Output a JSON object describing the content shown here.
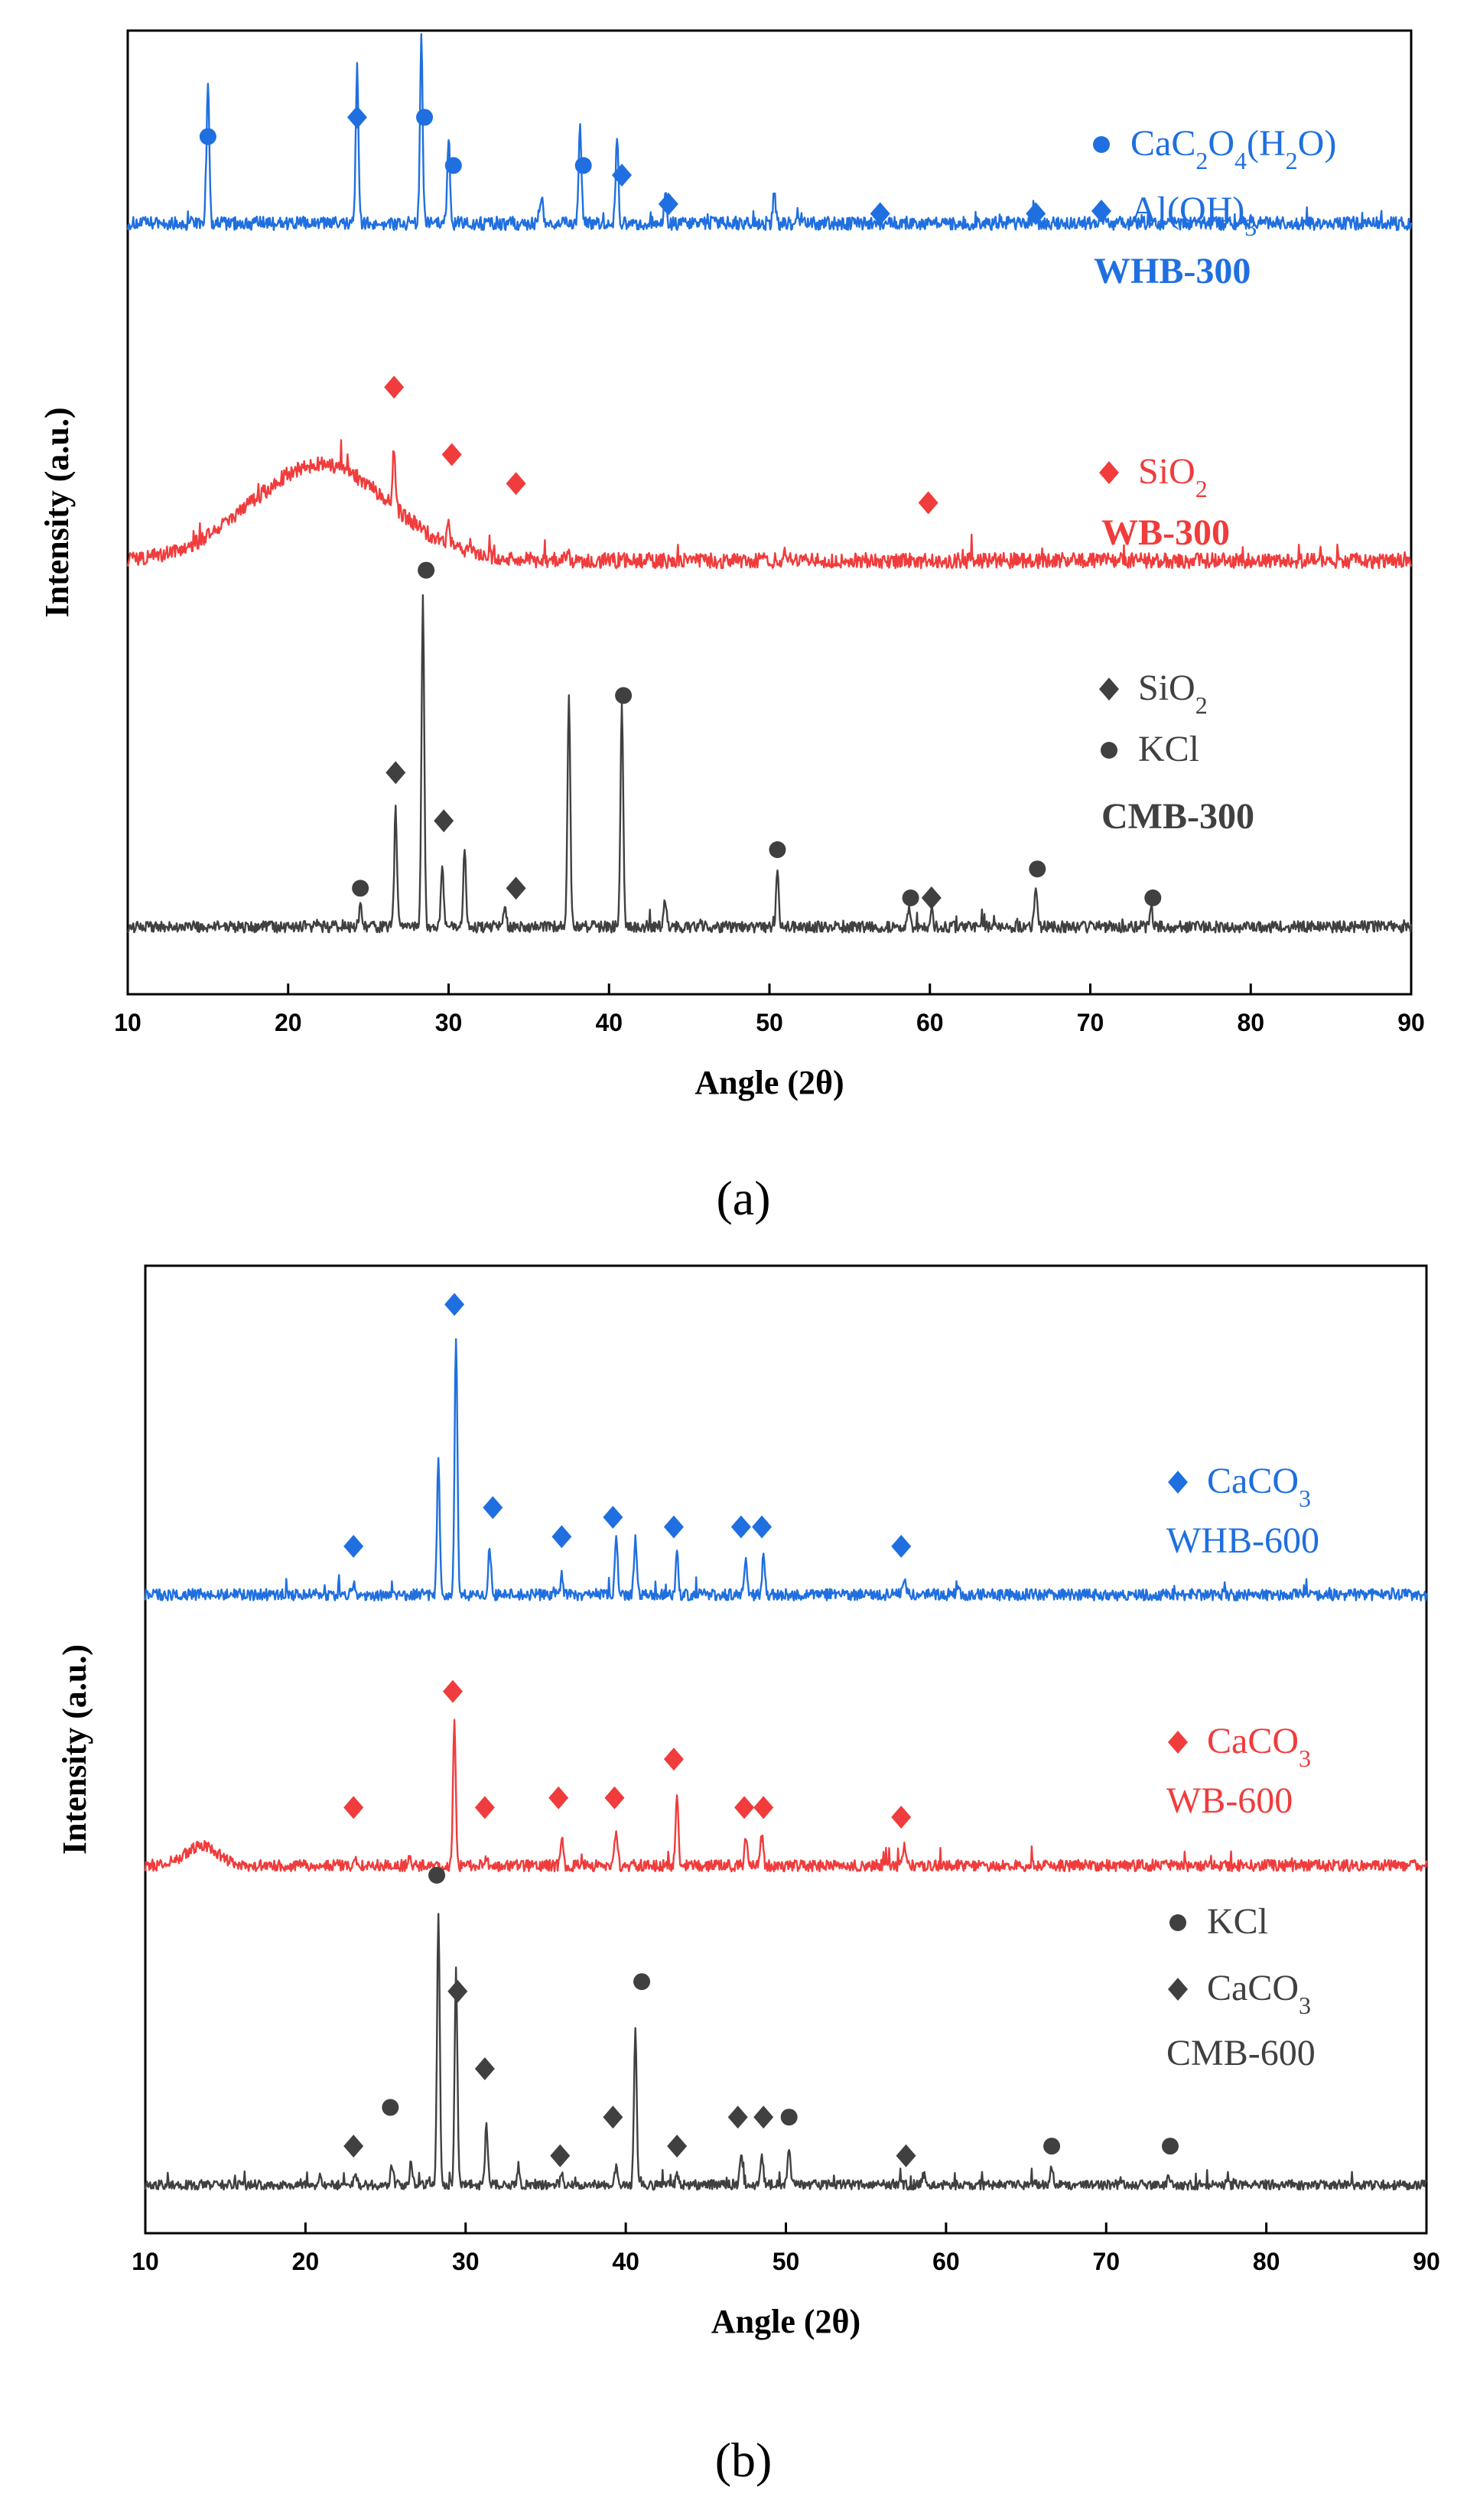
{
  "captions": {
    "a": "(a)",
    "b": "(b)"
  },
  "chart_data": [
    {
      "type": "line",
      "panel": "a",
      "xlabel": "Angle (2θ)",
      "ylabel": "Intensity (a.u.)",
      "xlim": [
        10,
        90
      ],
      "xticks": [
        10,
        20,
        30,
        40,
        50,
        60,
        70,
        80,
        90
      ],
      "series": [
        {
          "name": "WHB-300",
          "color": "#1f6fe0",
          "baseline": 0.8,
          "noise": 0.007,
          "hump": null,
          "peaks": [
            [
              15.0,
              0.15
            ],
            [
              24.3,
              0.16
            ],
            [
              28.3,
              0.19
            ],
            [
              30.0,
              0.09
            ],
            [
              35.8,
              0.03
            ],
            [
              38.2,
              0.1
            ],
            [
              40.5,
              0.09
            ],
            [
              43.5,
              0.03
            ],
            [
              50.3,
              0.03
            ],
            [
              66.5,
              0.02
            ]
          ],
          "legend": [
            {
              "marker": "circle",
              "label_main": "CaC",
              "label_parts": [
                [
                  "CaC",
                  ""
                ],
                [
                  "2",
                  "sub"
                ],
                [
                  "O",
                  ""
                ],
                [
                  "4",
                  "sub"
                ],
                [
                  "(H",
                  ""
                ],
                [
                  "2",
                  "sub"
                ],
                [
                  "O)",
                  ""
                ]
              ]
            },
            {
              "marker": "diamond",
              "label_parts": [
                [
                  "Al(OH)",
                  ""
                ],
                [
                  "3",
                  "sub"
                ]
              ]
            },
            {
              "marker": "none",
              "label_parts": [
                [
                  "WHB-300",
                  "bold"
                ]
              ]
            }
          ],
          "markers": [
            {
              "type": "circle",
              "x": 15.0,
              "y": 0.89
            },
            {
              "type": "diamond",
              "x": 24.3,
              "y": 0.91
            },
            {
              "type": "circle",
              "x": 28.5,
              "y": 0.91
            },
            {
              "type": "circle",
              "x": 30.3,
              "y": 0.86
            },
            {
              "type": "circle",
              "x": 38.4,
              "y": 0.86
            },
            {
              "type": "diamond",
              "x": 40.8,
              "y": 0.85
            },
            {
              "type": "diamond",
              "x": 43.7,
              "y": 0.82
            },
            {
              "type": "diamond",
              "x": 56.9,
              "y": 0.81
            },
            {
              "type": "diamond",
              "x": 66.6,
              "y": 0.81
            }
          ]
        },
        {
          "name": "WB-300",
          "color": "#f03c3c",
          "baseline": 0.45,
          "noise": 0.008,
          "hump": {
            "center": 22,
            "width": 6,
            "height": 0.1
          },
          "peaks": [
            [
              26.6,
              0.06
            ],
            [
              30.0,
              0.02
            ],
            [
              37.4,
              0.01
            ],
            [
              51.0,
              0.01
            ]
          ],
          "legend": [
            {
              "marker": "diamond",
              "label_parts": [
                [
                  "SiO",
                  ""
                ],
                [
                  "2",
                  "sub"
                ]
              ]
            },
            {
              "marker": "none",
              "label_parts": [
                [
                  "WB-300",
                  "bold"
                ]
              ]
            }
          ],
          "markers": [
            {
              "type": "diamond",
              "x": 26.6,
              "y": 0.63
            },
            {
              "type": "diamond",
              "x": 30.2,
              "y": 0.56
            },
            {
              "type": "diamond",
              "x": 34.2,
              "y": 0.53
            },
            {
              "type": "diamond",
              "x": 59.9,
              "y": 0.51
            }
          ]
        },
        {
          "name": "CMB-300",
          "color": "#404040",
          "baseline": 0.07,
          "noise": 0.006,
          "hump": null,
          "peaks": [
            [
              24.5,
              0.02
            ],
            [
              26.7,
              0.12
            ],
            [
              28.4,
              0.34
            ],
            [
              29.6,
              0.06
            ],
            [
              31.0,
              0.08
            ],
            [
              33.5,
              0.02
            ],
            [
              37.5,
              0.24
            ],
            [
              40.8,
              0.23
            ],
            [
              43.5,
              0.03
            ],
            [
              50.5,
              0.06
            ],
            [
              58.7,
              0.02
            ],
            [
              60.1,
              0.02
            ],
            [
              66.6,
              0.04
            ],
            [
              73.8,
              0.02
            ]
          ],
          "legend": [
            {
              "marker": "diamond",
              "label_parts": [
                [
                  "SiO",
                  ""
                ],
                [
                  "2",
                  "sub"
                ]
              ]
            },
            {
              "marker": "circle",
              "label_parts": [
                [
                  "KCl",
                  ""
                ]
              ]
            },
            {
              "marker": "none",
              "label_parts": [
                [
                  "CMB-300",
                  "bold"
                ]
              ]
            }
          ],
          "markers": [
            {
              "type": "circle",
              "x": 24.5,
              "y": 0.11
            },
            {
              "type": "diamond",
              "x": 26.7,
              "y": 0.23
            },
            {
              "type": "circle",
              "x": 28.6,
              "y": 0.44
            },
            {
              "type": "diamond",
              "x": 29.7,
              "y": 0.18
            },
            {
              "type": "diamond",
              "x": 34.2,
              "y": 0.11
            },
            {
              "type": "circle",
              "x": 40.9,
              "y": 0.31
            },
            {
              "type": "circle",
              "x": 50.5,
              "y": 0.15
            },
            {
              "type": "circle",
              "x": 58.8,
              "y": 0.1
            },
            {
              "type": "diamond",
              "x": 60.1,
              "y": 0.1
            },
            {
              "type": "circle",
              "x": 66.7,
              "y": 0.13
            },
            {
              "type": "circle",
              "x": 73.9,
              "y": 0.1
            }
          ]
        }
      ]
    },
    {
      "type": "line",
      "panel": "b",
      "xlabel": "Angle (2θ)",
      "ylabel": "Intensity (a.u.)",
      "xlim": [
        10,
        90
      ],
      "xticks": [
        10,
        20,
        30,
        40,
        50,
        60,
        70,
        80,
        90
      ],
      "series": [
        {
          "name": "WHB-600",
          "color": "#1f6fe0",
          "baseline": 0.66,
          "noise": 0.006,
          "hump": null,
          "peaks": [
            [
              23.0,
              0.01
            ],
            [
              28.3,
              0.14
            ],
            [
              29.4,
              0.27
            ],
            [
              31.5,
              0.05
            ],
            [
              36.0,
              0.02
            ],
            [
              39.4,
              0.06
            ],
            [
              40.6,
              0.06
            ],
            [
              43.2,
              0.04
            ],
            [
              47.5,
              0.04
            ],
            [
              48.6,
              0.04
            ],
            [
              57.4,
              0.02
            ],
            [
              60.7,
              0.01
            ]
          ],
          "legend": [
            {
              "marker": "diamond",
              "label_parts": [
                [
                  "CaCO",
                  ""
                ],
                [
                  "3",
                  "sub"
                ]
              ]
            },
            {
              "marker": "none",
              "label_parts": [
                [
                  "WHB-600",
                  ""
                ]
              ]
            }
          ],
          "markers": [
            {
              "type": "diamond",
              "x": 23.0,
              "y": 0.71
            },
            {
              "type": "diamond",
              "x": 29.3,
              "y": 0.96
            },
            {
              "type": "diamond",
              "x": 31.7,
              "y": 0.75
            },
            {
              "type": "diamond",
              "x": 36.0,
              "y": 0.72
            },
            {
              "type": "diamond",
              "x": 39.2,
              "y": 0.74
            },
            {
              "type": "diamond",
              "x": 43.0,
              "y": 0.73
            },
            {
              "type": "diamond",
              "x": 47.2,
              "y": 0.73
            },
            {
              "type": "diamond",
              "x": 48.5,
              "y": 0.73
            },
            {
              "type": "diamond",
              "x": 57.2,
              "y": 0.71
            }
          ]
        },
        {
          "name": "WB-600",
          "color": "#f03c3c",
          "baseline": 0.38,
          "noise": 0.006,
          "hump": {
            "center": 13.5,
            "width": 1.5,
            "height": 0.02
          },
          "peaks": [
            [
              23.1,
              0.01
            ],
            [
              26.5,
              0.01
            ],
            [
              29.3,
              0.15
            ],
            [
              31.3,
              0.01
            ],
            [
              36.0,
              0.03
            ],
            [
              39.4,
              0.04
            ],
            [
              43.2,
              0.07
            ],
            [
              47.5,
              0.03
            ],
            [
              48.5,
              0.03
            ],
            [
              57.4,
              0.02
            ]
          ],
          "legend": [
            {
              "marker": "diamond",
              "label_parts": [
                [
                  "CaCO",
                  ""
                ],
                [
                  "3",
                  "sub"
                ]
              ]
            },
            {
              "marker": "none",
              "label_parts": [
                [
                  "WB-600",
                  ""
                ]
              ]
            }
          ],
          "markers": [
            {
              "type": "diamond",
              "x": 23.0,
              "y": 0.44
            },
            {
              "type": "diamond",
              "x": 29.2,
              "y": 0.56
            },
            {
              "type": "diamond",
              "x": 31.2,
              "y": 0.44
            },
            {
              "type": "diamond",
              "x": 35.8,
              "y": 0.45
            },
            {
              "type": "diamond",
              "x": 39.3,
              "y": 0.45
            },
            {
              "type": "diamond",
              "x": 43.0,
              "y": 0.49
            },
            {
              "type": "diamond",
              "x": 47.4,
              "y": 0.44
            },
            {
              "type": "diamond",
              "x": 48.6,
              "y": 0.44
            },
            {
              "type": "diamond",
              "x": 57.2,
              "y": 0.43
            }
          ]
        },
        {
          "name": "CMB-600",
          "color": "#404040",
          "baseline": 0.05,
          "noise": 0.005,
          "hump": null,
          "peaks": [
            [
              20.9,
              0.01
            ],
            [
              23.1,
              0.01
            ],
            [
              25.4,
              0.02
            ],
            [
              26.6,
              0.02
            ],
            [
              28.3,
              0.28
            ],
            [
              29.4,
              0.22
            ],
            [
              31.3,
              0.06
            ],
            [
              33.3,
              0.02
            ],
            [
              36.0,
              0.01
            ],
            [
              39.4,
              0.02
            ],
            [
              40.6,
              0.16
            ],
            [
              43.2,
              0.01
            ],
            [
              47.2,
              0.03
            ],
            [
              48.5,
              0.03
            ],
            [
              50.2,
              0.04
            ],
            [
              58.6,
              0.01
            ],
            [
              66.6,
              0.02
            ],
            [
              73.9,
              0.01
            ]
          ],
          "legend": [
            {
              "marker": "circle",
              "label_parts": [
                [
                  "KCl",
                  ""
                ]
              ]
            },
            {
              "marker": "diamond",
              "label_parts": [
                [
                  "CaCO",
                  ""
                ],
                [
                  "3",
                  "sub"
                ]
              ]
            },
            {
              "marker": "none",
              "label_parts": [
                [
                  "CMB-600",
                  ""
                ]
              ]
            }
          ],
          "markers": [
            {
              "type": "diamond",
              "x": 23.0,
              "y": 0.09
            },
            {
              "type": "circle",
              "x": 25.3,
              "y": 0.13
            },
            {
              "type": "circle",
              "x": 28.2,
              "y": 0.37
            },
            {
              "type": "diamond",
              "x": 29.5,
              "y": 0.25
            },
            {
              "type": "diamond",
              "x": 31.2,
              "y": 0.17
            },
            {
              "type": "diamond",
              "x": 35.9,
              "y": 0.08
            },
            {
              "type": "diamond",
              "x": 39.2,
              "y": 0.12
            },
            {
              "type": "circle",
              "x": 41.0,
              "y": 0.26
            },
            {
              "type": "diamond",
              "x": 43.2,
              "y": 0.09
            },
            {
              "type": "diamond",
              "x": 47.0,
              "y": 0.12
            },
            {
              "type": "diamond",
              "x": 48.6,
              "y": 0.12
            },
            {
              "type": "circle",
              "x": 50.2,
              "y": 0.12
            },
            {
              "type": "diamond",
              "x": 57.5,
              "y": 0.08
            },
            {
              "type": "circle",
              "x": 66.6,
              "y": 0.09
            },
            {
              "type": "circle",
              "x": 74.0,
              "y": 0.09
            }
          ]
        }
      ]
    }
  ]
}
